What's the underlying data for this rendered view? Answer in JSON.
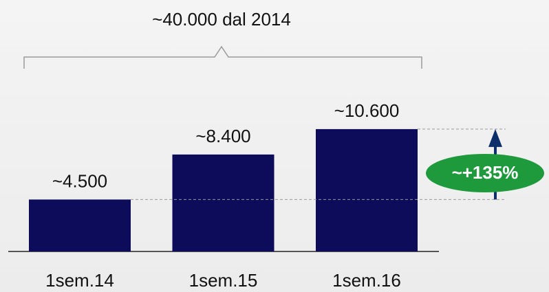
{
  "chart_data": {
    "type": "bar",
    "categories": [
      "1sem.14",
      "1sem.15",
      "1sem.16"
    ],
    "values": [
      4500,
      8400,
      10600
    ],
    "value_labels": [
      "~4.500",
      "~8.400",
      "~10.600"
    ],
    "color": "#0c0c5a",
    "annotations": [
      "~40.000 dal 2014",
      "~+135%"
    ]
  }
}
